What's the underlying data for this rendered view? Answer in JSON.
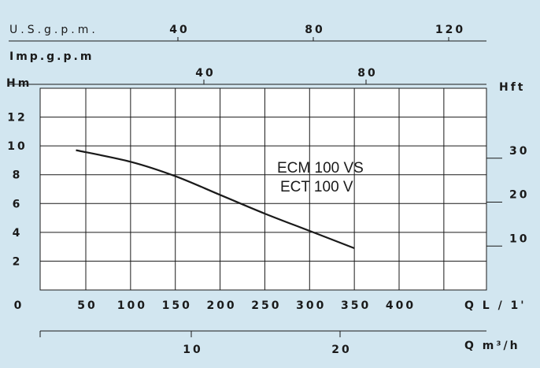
{
  "chart_data": {
    "type": "line",
    "background": "#d2e6f0",
    "plot_background": "#ffffff",
    "line_color": "#1a1a1a",
    "grid": true,
    "x_main": {
      "label": "Q L / 1'",
      "ticks": [
        50,
        100,
        150,
        200,
        250,
        300,
        350,
        400
      ],
      "zero_label": "0",
      "range": [
        0,
        500
      ]
    },
    "y_main": {
      "label": "Hm",
      "ticks": [
        2,
        4,
        6,
        8,
        10,
        12
      ],
      "zero_label": "0",
      "range": [
        0,
        14
      ]
    },
    "y_secondary": {
      "label": "Hft",
      "ticks": [
        10,
        20,
        30
      ]
    },
    "x_usgpm": {
      "label": "U.S.g.p.m.",
      "ticks": [
        40,
        80,
        120
      ]
    },
    "x_impgpm": {
      "label": "Imp.g.p.m",
      "ticks": [
        40,
        80
      ]
    },
    "x_m3h": {
      "label": "Q m³/h",
      "ticks": [
        10,
        20
      ]
    },
    "series": [
      {
        "name": "ECM 100 VS / ECT 100 V",
        "points": [
          [
            39,
            9.7
          ],
          [
            100,
            8.9
          ],
          [
            150,
            7.9
          ],
          [
            200,
            6.6
          ],
          [
            250,
            5.3
          ],
          [
            300,
            4.1
          ],
          [
            350,
            2.9
          ]
        ]
      }
    ],
    "annotation_lines": [
      "ECM 100 VS",
      "ECT   100 V"
    ]
  }
}
